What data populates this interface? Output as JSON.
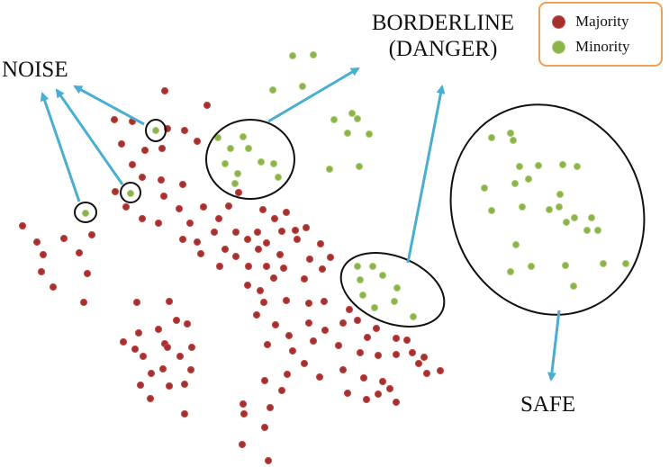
{
  "labels": {
    "noise": "NOISE",
    "borderline_line1": "BORDERLINE",
    "borderline_line2": "(DANGER)",
    "safe": "SAFE"
  },
  "legend": {
    "majority": "Majority",
    "minority": "Minority"
  },
  "colors": {
    "majority_fill": "#a3312f",
    "majority_stroke": "#c9504c",
    "minority_fill": "#8ab44a",
    "minority_stroke": "#b3cf80",
    "arrow": "#4aaed0",
    "ellipse": "#111111",
    "legend_border": "#f0a050"
  }
}
